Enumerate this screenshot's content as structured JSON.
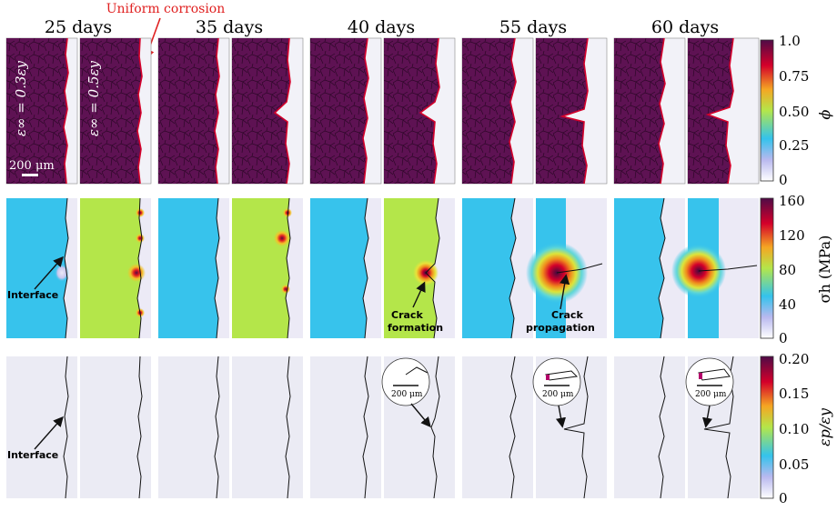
{
  "annotation_top": "Uniform corrosion",
  "columns": [
    "25 days",
    "35 days",
    "40 days",
    "55 days",
    "60 days"
  ],
  "strain_labels": [
    "ε∞ = 0.3εy",
    "ε∞ = 0.5εy"
  ],
  "scale_bar": "200 μm",
  "inset_scale": "200 μm",
  "labels": {
    "interface": "Interface",
    "crack_formation": "Crack formation",
    "crack_formation_lines": [
      "Crack",
      "formation"
    ],
    "crack_propagation_lines": [
      "Crack",
      "propagation"
    ]
  },
  "colorbars": [
    {
      "label": "ϕ",
      "ticks": [
        "1.0",
        "0.75",
        "0.50",
        "0.25",
        "0"
      ]
    },
    {
      "label": "σh (MPa)",
      "ticks": [
        "160",
        "120",
        "80",
        "40",
        "0"
      ]
    },
    {
      "label": "εp/εy",
      "ticks": [
        "0.20",
        "0.15",
        "0.10",
        "0.05",
        "0"
      ]
    }
  ],
  "colors": {
    "grain": "#5e1253",
    "grain_edge": "#2b0626",
    "corroded": "#f2f2f8",
    "stress_low": "#37c3ec",
    "stress_high_field": "#b7e64a",
    "plastic_bg": "#ebebf4",
    "annotation": "#e02020"
  }
}
